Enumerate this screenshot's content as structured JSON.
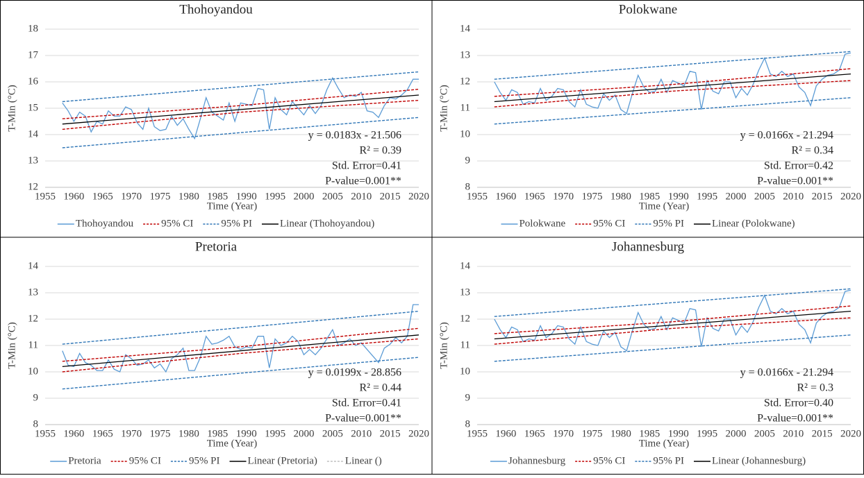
{
  "chart_data": [
    {
      "type": "line",
      "title": "Thohoyandou",
      "xlabel": "Time (Year)",
      "ylabel": "T-Min (°C)",
      "x": [
        1958,
        1959,
        1960,
        1961,
        1962,
        1963,
        1964,
        1965,
        1966,
        1967,
        1968,
        1969,
        1970,
        1971,
        1972,
        1973,
        1974,
        1975,
        1976,
        1977,
        1978,
        1979,
        1980,
        1981,
        1982,
        1983,
        1984,
        1985,
        1986,
        1987,
        1988,
        1989,
        1990,
        1991,
        1992,
        1993,
        1994,
        1995,
        1996,
        1997,
        1998,
        1999,
        2000,
        2001,
        2002,
        2003,
        2004,
        2005,
        2006,
        2007,
        2008,
        2009,
        2010,
        2011,
        2012,
        2013,
        2014,
        2015,
        2016,
        2017,
        2018,
        2019,
        2020
      ],
      "xlim": [
        1955,
        2020
      ],
      "xticks": [
        1955,
        1960,
        1965,
        1970,
        1975,
        1980,
        1985,
        1990,
        1995,
        2000,
        2005,
        2010,
        2015,
        2020
      ],
      "ylim": [
        12,
        18
      ],
      "yticks": [
        12,
        13,
        14,
        15,
        16,
        17,
        18
      ],
      "grid": true,
      "series": [
        {
          "name": "Thohoyandou",
          "color": "#5b9bd5",
          "dash": false,
          "values": [
            15.2,
            14.9,
            14.5,
            14.85,
            14.7,
            14.1,
            14.5,
            14.4,
            14.9,
            14.7,
            14.7,
            15.05,
            14.95,
            14.45,
            14.2,
            15.0,
            14.3,
            14.15,
            14.2,
            14.7,
            14.35,
            14.6,
            14.2,
            13.85,
            14.6,
            15.4,
            14.85,
            14.7,
            14.55,
            15.2,
            14.5,
            15.2,
            15.15,
            15.1,
            15.75,
            15.7,
            14.2,
            15.4,
            14.95,
            14.75,
            15.25,
            15.0,
            14.75,
            15.1,
            14.8,
            15.1,
            15.7,
            16.15,
            15.75,
            15.4,
            15.5,
            15.45,
            15.6,
            14.9,
            14.85,
            14.65,
            15.1,
            15.4,
            15.35,
            15.5,
            15.7,
            16.1,
            16.1
          ]
        },
        {
          "name": "95% CI",
          "color": "#c00000",
          "dash": true,
          "x": [
            1958,
            1989,
            2020
          ],
          "values": [
            14.6,
            15.1,
            15.72
          ],
          "lower": [
            14.2,
            14.85,
            15.3
          ]
        },
        {
          "name": "95% PI",
          "color": "#2e75b6",
          "dash": true,
          "x": [
            1958,
            2020
          ],
          "values": [
            15.25,
            16.38
          ],
          "lower": [
            13.5,
            14.65
          ]
        },
        {
          "name": "Linear (Thohoyandou)",
          "color": "#000000",
          "dash": false,
          "x": [
            1958,
            2020
          ],
          "values": [
            14.4,
            15.5
          ]
        }
      ],
      "annotations": [
        "y = 0.0183x - 21.506",
        "R² = 0.39",
        "Std. Error=0.41",
        "P-value=0.001**"
      ]
    },
    {
      "type": "line",
      "title": "Polokwane",
      "xlabel": "Time (Year)",
      "ylabel": "T-Min (°C)",
      "x": [
        1958,
        1959,
        1960,
        1961,
        1962,
        1963,
        1964,
        1965,
        1966,
        1967,
        1968,
        1969,
        1970,
        1971,
        1972,
        1973,
        1974,
        1975,
        1976,
        1977,
        1978,
        1979,
        1980,
        1981,
        1982,
        1983,
        1984,
        1985,
        1986,
        1987,
        1988,
        1989,
        1990,
        1991,
        1992,
        1993,
        1994,
        1995,
        1996,
        1997,
        1998,
        1999,
        2000,
        2001,
        2002,
        2003,
        2004,
        2005,
        2006,
        2007,
        2008,
        2009,
        2010,
        2011,
        2012,
        2013,
        2014,
        2015,
        2016,
        2017,
        2018,
        2019,
        2020
      ],
      "xlim": [
        1955,
        2020
      ],
      "xticks": [
        1955,
        1960,
        1965,
        1970,
        1975,
        1980,
        1985,
        1990,
        1995,
        2000,
        2005,
        2010,
        2015,
        2020
      ],
      "ylim": [
        8,
        14
      ],
      "yticks": [
        8,
        9,
        10,
        11,
        12,
        13,
        14
      ],
      "grid": true,
      "series": [
        {
          "name": "Polokwane",
          "color": "#5b9bd5",
          "dash": false,
          "values": [
            12.0,
            11.6,
            11.3,
            11.7,
            11.6,
            11.15,
            11.25,
            11.2,
            11.75,
            11.3,
            11.45,
            11.75,
            11.7,
            11.25,
            11.05,
            11.7,
            11.15,
            11.05,
            11.0,
            11.55,
            11.3,
            11.5,
            10.95,
            10.8,
            11.55,
            12.25,
            11.8,
            11.6,
            11.65,
            12.1,
            11.6,
            12.05,
            11.95,
            11.85,
            12.4,
            12.35,
            10.95,
            12.05,
            11.65,
            11.55,
            12.0,
            12.0,
            11.4,
            11.75,
            11.5,
            11.9,
            12.45,
            12.9,
            12.3,
            12.2,
            12.4,
            12.2,
            12.3,
            11.8,
            11.6,
            11.1,
            11.85,
            12.1,
            12.25,
            12.3,
            12.45,
            13.05,
            13.1
          ]
        },
        {
          "name": "95% CI",
          "color": "#c00000",
          "dash": true,
          "x": [
            1958,
            1989,
            2020
          ],
          "values": [
            11.45,
            11.9,
            12.5
          ],
          "lower": [
            11.05,
            11.65,
            12.05
          ]
        },
        {
          "name": "95% PI",
          "color": "#2e75b6",
          "dash": true,
          "x": [
            1958,
            2020
          ],
          "values": [
            12.1,
            13.15
          ],
          "lower": [
            10.4,
            11.4
          ]
        },
        {
          "name": "Linear (Polokwane)",
          "color": "#000000",
          "dash": false,
          "x": [
            1958,
            2020
          ],
          "values": [
            11.25,
            12.3
          ]
        }
      ],
      "annotations": [
        "y = 0.0166x - 21.294",
        "R² = 0.34",
        "Std. Error=0.42",
        "P-value=0.001**"
      ]
    },
    {
      "type": "line",
      "title": "Pretoria",
      "xlabel": "Time (Year)",
      "ylabel": "T-Min (°C)",
      "x": [
        1958,
        1959,
        1960,
        1961,
        1962,
        1963,
        1964,
        1965,
        1966,
        1967,
        1968,
        1969,
        1970,
        1971,
        1972,
        1973,
        1974,
        1975,
        1976,
        1977,
        1978,
        1979,
        1980,
        1981,
        1982,
        1983,
        1984,
        1985,
        1986,
        1987,
        1988,
        1989,
        1990,
        1991,
        1992,
        1993,
        1994,
        1995,
        1996,
        1997,
        1998,
        1999,
        2000,
        2001,
        2002,
        2003,
        2004,
        2005,
        2006,
        2007,
        2008,
        2009,
        2010,
        2011,
        2012,
        2013,
        2014,
        2015,
        2016,
        2017,
        2018,
        2019,
        2020
      ],
      "xlim": [
        1955,
        2020
      ],
      "xticks": [
        1955,
        1960,
        1965,
        1970,
        1975,
        1980,
        1985,
        1990,
        1995,
        2000,
        2005,
        2010,
        2015,
        2020
      ],
      "ylim": [
        8,
        14
      ],
      "yticks": [
        8,
        9,
        10,
        11,
        12,
        13,
        14
      ],
      "grid": true,
      "series": [
        {
          "name": "Pretoria",
          "color": "#5b9bd5",
          "dash": false,
          "values": [
            10.8,
            10.25,
            10.2,
            10.7,
            10.35,
            10.25,
            10.05,
            10.05,
            10.45,
            10.1,
            10.0,
            10.65,
            10.5,
            10.25,
            10.3,
            10.45,
            10.15,
            10.3,
            10.0,
            10.5,
            10.65,
            10.9,
            10.05,
            10.05,
            10.55,
            11.35,
            11.05,
            11.1,
            11.2,
            11.35,
            10.95,
            10.85,
            10.95,
            10.9,
            11.35,
            11.35,
            10.15,
            11.25,
            11.0,
            11.1,
            11.35,
            11.15,
            10.65,
            10.85,
            10.65,
            10.9,
            11.25,
            11.6,
            11.0,
            11.1,
            11.25,
            11.0,
            11.1,
            10.85,
            10.6,
            10.35,
            10.9,
            11.05,
            11.3,
            11.1,
            11.35,
            12.55,
            12.55
          ]
        },
        {
          "name": "95% CI",
          "color": "#c00000",
          "dash": true,
          "x": [
            1958,
            1989,
            2020
          ],
          "values": [
            10.4,
            10.95,
            11.65
          ],
          "lower": [
            10.0,
            10.7,
            11.25
          ]
        },
        {
          "name": "95% PI",
          "color": "#2e75b6",
          "dash": true,
          "x": [
            1958,
            2020
          ],
          "values": [
            11.05,
            12.3
          ],
          "lower": [
            9.35,
            10.55
          ]
        },
        {
          "name": "Linear (Pretoria)",
          "color": "#000000",
          "dash": false,
          "x": [
            1958,
            2020
          ],
          "values": [
            10.2,
            11.4
          ]
        },
        {
          "name": "Linear ()",
          "color": "#bfbfbf",
          "dash": true,
          "x": [],
          "values": []
        }
      ],
      "annotations": [
        "y = 0.0199x - 28.856",
        "R² = 0.44",
        "Std. Error=0.41",
        "P-value=0.001**"
      ]
    },
    {
      "type": "line",
      "title": "Johannesburg",
      "xlabel": "Time (Year)",
      "ylabel": "T-Min (°C)",
      "x": [
        1958,
        1959,
        1960,
        1961,
        1962,
        1963,
        1964,
        1965,
        1966,
        1967,
        1968,
        1969,
        1970,
        1971,
        1972,
        1973,
        1974,
        1975,
        1976,
        1977,
        1978,
        1979,
        1980,
        1981,
        1982,
        1983,
        1984,
        1985,
        1986,
        1987,
        1988,
        1989,
        1990,
        1991,
        1992,
        1993,
        1994,
        1995,
        1996,
        1997,
        1998,
        1999,
        2000,
        2001,
        2002,
        2003,
        2004,
        2005,
        2006,
        2007,
        2008,
        2009,
        2010,
        2011,
        2012,
        2013,
        2014,
        2015,
        2016,
        2017,
        2018,
        2019,
        2020
      ],
      "xlim": [
        1955,
        2020
      ],
      "xticks": [
        1955,
        1960,
        1965,
        1970,
        1975,
        1980,
        1985,
        1990,
        1995,
        2000,
        2005,
        2010,
        2015,
        2020
      ],
      "ylim": [
        8,
        14
      ],
      "yticks": [
        8,
        9,
        10,
        11,
        12,
        13,
        14
      ],
      "grid": true,
      "series": [
        {
          "name": "Johannesburg",
          "color": "#5b9bd5",
          "dash": false,
          "values": [
            12.0,
            11.6,
            11.3,
            11.7,
            11.6,
            11.15,
            11.25,
            11.2,
            11.75,
            11.3,
            11.45,
            11.75,
            11.7,
            11.25,
            11.05,
            11.7,
            11.15,
            11.05,
            11.0,
            11.55,
            11.3,
            11.5,
            10.95,
            10.8,
            11.55,
            12.25,
            11.8,
            11.6,
            11.65,
            12.1,
            11.6,
            12.05,
            11.95,
            11.85,
            12.4,
            12.35,
            10.95,
            12.05,
            11.65,
            11.55,
            12.0,
            12.0,
            11.4,
            11.75,
            11.5,
            11.9,
            12.45,
            12.9,
            12.3,
            12.2,
            12.4,
            12.2,
            12.3,
            11.8,
            11.6,
            11.1,
            11.85,
            12.1,
            12.25,
            12.3,
            12.45,
            13.05,
            13.1
          ]
        },
        {
          "name": "95% CI",
          "color": "#c00000",
          "dash": true,
          "x": [
            1958,
            1989,
            2020
          ],
          "values": [
            11.45,
            11.9,
            12.5
          ],
          "lower": [
            11.05,
            11.65,
            12.05
          ]
        },
        {
          "name": "95% PI",
          "color": "#2e75b6",
          "dash": true,
          "x": [
            1958,
            2020
          ],
          "values": [
            12.1,
            13.15
          ],
          "lower": [
            10.4,
            11.4
          ]
        },
        {
          "name": "Linear (Johannesburg)",
          "color": "#000000",
          "dash": false,
          "x": [
            1958,
            2020
          ],
          "values": [
            11.25,
            12.3
          ]
        }
      ],
      "annotations": [
        "y = 0.0166x - 21.294",
        "R² = 0.3",
        "Std. Error=0.40",
        "P-value=0.001**"
      ]
    }
  ]
}
